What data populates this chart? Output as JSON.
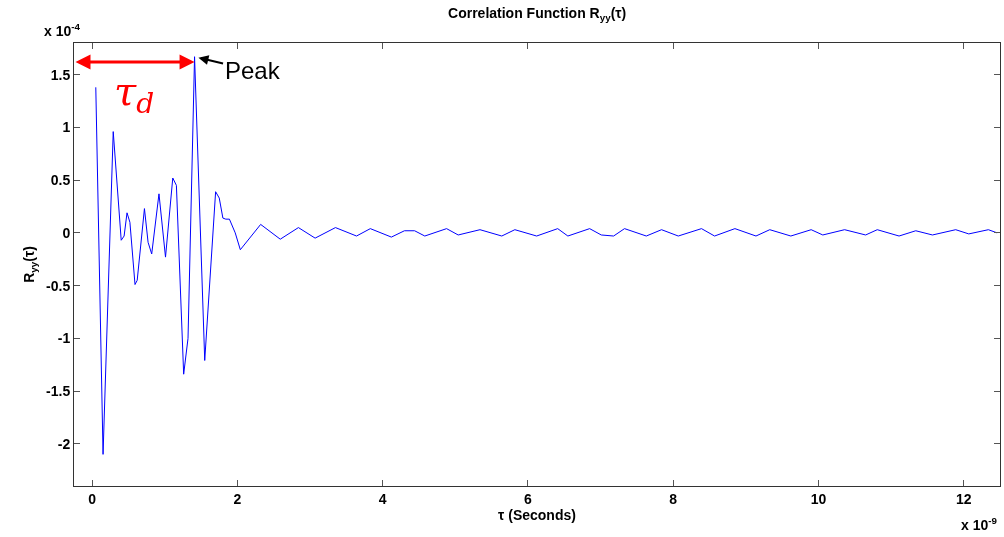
{
  "chart_data": {
    "type": "line",
    "title": "Correlation Function R$_{yy}$(τ)",
    "xlabel": "τ (Seconds)",
    "ylabel": "R$_{yy}$(τ)",
    "x": [
      0.05,
      0.15,
      0.29,
      0.4,
      0.44,
      0.48,
      0.52,
      0.59,
      0.62,
      0.72,
      0.77,
      0.82,
      0.92,
      1.01,
      1.11,
      1.16,
      1.26,
      1.32,
      1.41,
      1.55,
      1.7,
      1.75,
      1.8,
      1.84,
      1.89,
      1.97,
      2.04,
      2.32,
      2.59,
      2.84,
      3.07,
      3.35,
      3.64,
      3.83,
      4.12,
      4.3,
      4.44,
      4.58,
      4.88,
      5.04,
      5.34,
      5.64,
      5.82,
      6.12,
      6.41,
      6.55,
      6.85,
      7.01,
      7.18,
      7.33,
      7.63,
      7.84,
      8.07,
      8.39,
      8.57,
      8.85,
      9.14,
      9.33,
      9.62,
      9.9,
      10.06,
      10.36,
      10.65,
      10.81,
      11.11,
      11.34,
      11.57,
      11.89,
      12.07,
      12.34,
      12.46
    ],
    "series": [
      {
        "color": "#0000ff",
        "values": [
          1.38,
          -2.1,
          0.96,
          -0.07,
          -0.03,
          0.19,
          0.1,
          -0.49,
          -0.45,
          0.23,
          -0.09,
          -0.2,
          0.37,
          -0.23,
          0.52,
          0.45,
          -1.34,
          -1.0,
          1.67,
          -1.21,
          0.39,
          0.33,
          0.14,
          0.13,
          0.13,
          0.0,
          -0.16,
          0.08,
          -0.06,
          0.05,
          -0.05,
          0.05,
          -0.03,
          0.04,
          -0.04,
          0.02,
          0.02,
          -0.03,
          0.04,
          -0.02,
          0.03,
          -0.03,
          0.03,
          -0.03,
          0.04,
          -0.03,
          0.04,
          -0.02,
          -0.03,
          0.04,
          -0.03,
          0.03,
          -0.03,
          0.04,
          -0.03,
          0.04,
          -0.03,
          0.03,
          -0.03,
          0.03,
          -0.02,
          0.03,
          -0.02,
          0.03,
          -0.03,
          0.02,
          -0.02,
          0.03,
          -0.01,
          0.03,
          0.0
        ]
      }
    ],
    "xlim": [
      -0.25,
      12.5
    ],
    "xticks": [
      0,
      2,
      4,
      6,
      8,
      10,
      12
    ],
    "ylim": [
      -2.4,
      1.8
    ],
    "yticks": [
      -2,
      -1.5,
      -1,
      -0.5,
      0,
      0.5,
      1,
      1.5
    ],
    "grid": false,
    "marker": "none",
    "line_style": "solid",
    "annotations": [
      "x 10$^{-4}$",
      "x 10$^{-9}$",
      {
        "text": "Peak",
        "x": 1.41,
        "y": 1.67
      },
      {
        "text": "τ$_{d}$",
        "x": 1.41,
        "y": 1.62
      }
    ]
  }
}
